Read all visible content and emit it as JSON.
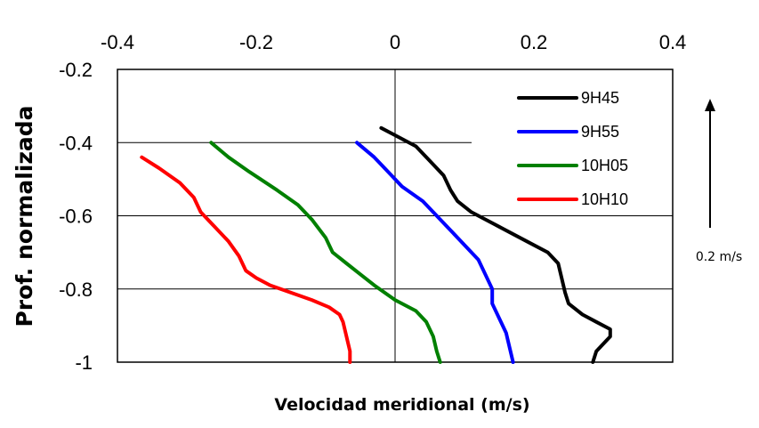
{
  "chart_data": {
    "type": "line",
    "title": "",
    "xlabel": "Velocidad meridional (m/s)",
    "ylabel": "Prof. normalizada",
    "xlim": [
      -0.4,
      0.4
    ],
    "ylim": [
      -1,
      -0.2
    ],
    "xticks": [
      -0.4,
      -0.2,
      0,
      0.2,
      0.4
    ],
    "xtick_labels": [
      "-0.4",
      "-0.2",
      "0",
      "0.2",
      "0.4"
    ],
    "yticks": [
      -0.2,
      -0.4,
      -0.6,
      -0.8,
      -1
    ],
    "ytick_labels": [
      "-0.2",
      "-0.4",
      "-0.6",
      "-0.8",
      "-1"
    ],
    "x_axis_position": "top",
    "grid": "horizontal",
    "legend_position": "top-right",
    "series": [
      {
        "name": "9H45",
        "color": "#000000",
        "points": [
          [
            -0.02,
            -0.36
          ],
          [
            0.0,
            -0.38
          ],
          [
            0.03,
            -0.41
          ],
          [
            0.05,
            -0.45
          ],
          [
            0.07,
            -0.49
          ],
          [
            0.08,
            -0.53
          ],
          [
            0.09,
            -0.56
          ],
          [
            0.11,
            -0.59
          ],
          [
            0.15,
            -0.63
          ],
          [
            0.19,
            -0.67
          ],
          [
            0.22,
            -0.7
          ],
          [
            0.235,
            -0.73
          ],
          [
            0.24,
            -0.77
          ],
          [
            0.245,
            -0.81
          ],
          [
            0.25,
            -0.84
          ],
          [
            0.27,
            -0.87
          ],
          [
            0.29,
            -0.89
          ],
          [
            0.31,
            -0.91
          ],
          [
            0.31,
            -0.93
          ],
          [
            0.29,
            -0.97
          ],
          [
            0.285,
            -1.0
          ]
        ]
      },
      {
        "name": "9H55",
        "color": "#0000ff",
        "points": [
          [
            -0.055,
            -0.4
          ],
          [
            -0.03,
            -0.44
          ],
          [
            -0.01,
            -0.48
          ],
          [
            0.01,
            -0.52
          ],
          [
            0.04,
            -0.56
          ],
          [
            0.06,
            -0.6
          ],
          [
            0.08,
            -0.64
          ],
          [
            0.1,
            -0.68
          ],
          [
            0.12,
            -0.72
          ],
          [
            0.13,
            -0.76
          ],
          [
            0.14,
            -0.8
          ],
          [
            0.14,
            -0.84
          ],
          [
            0.15,
            -0.88
          ],
          [
            0.16,
            -0.92
          ],
          [
            0.165,
            -0.96
          ],
          [
            0.17,
            -1.0
          ]
        ]
      },
      {
        "name": "10H05",
        "color": "#008000",
        "points": [
          [
            -0.265,
            -0.4
          ],
          [
            -0.24,
            -0.44
          ],
          [
            -0.21,
            -0.48
          ],
          [
            -0.17,
            -0.53
          ],
          [
            -0.14,
            -0.57
          ],
          [
            -0.12,
            -0.61
          ],
          [
            -0.1,
            -0.66
          ],
          [
            -0.09,
            -0.7
          ],
          [
            -0.07,
            -0.73
          ],
          [
            -0.05,
            -0.76
          ],
          [
            -0.03,
            -0.79
          ],
          [
            0.0,
            -0.83
          ],
          [
            0.03,
            -0.86
          ],
          [
            0.045,
            -0.89
          ],
          [
            0.055,
            -0.93
          ],
          [
            0.06,
            -0.97
          ],
          [
            0.065,
            -1.0
          ]
        ]
      },
      {
        "name": "10H10",
        "color": "#ff0000",
        "points": [
          [
            -0.365,
            -0.44
          ],
          [
            -0.34,
            -0.47
          ],
          [
            -0.31,
            -0.51
          ],
          [
            -0.29,
            -0.55
          ],
          [
            -0.28,
            -0.59
          ],
          [
            -0.26,
            -0.63
          ],
          [
            -0.24,
            -0.67
          ],
          [
            -0.225,
            -0.71
          ],
          [
            -0.215,
            -0.75
          ],
          [
            -0.2,
            -0.77
          ],
          [
            -0.18,
            -0.79
          ],
          [
            -0.15,
            -0.81
          ],
          [
            -0.12,
            -0.83
          ],
          [
            -0.095,
            -0.85
          ],
          [
            -0.08,
            -0.87
          ],
          [
            -0.075,
            -0.89
          ],
          [
            -0.07,
            -0.93
          ],
          [
            -0.065,
            -0.97
          ],
          [
            -0.065,
            -1.0
          ]
        ]
      }
    ],
    "annotation": {
      "label": "0.2 m/s",
      "vector_value": 0.2,
      "direction": "up"
    }
  }
}
